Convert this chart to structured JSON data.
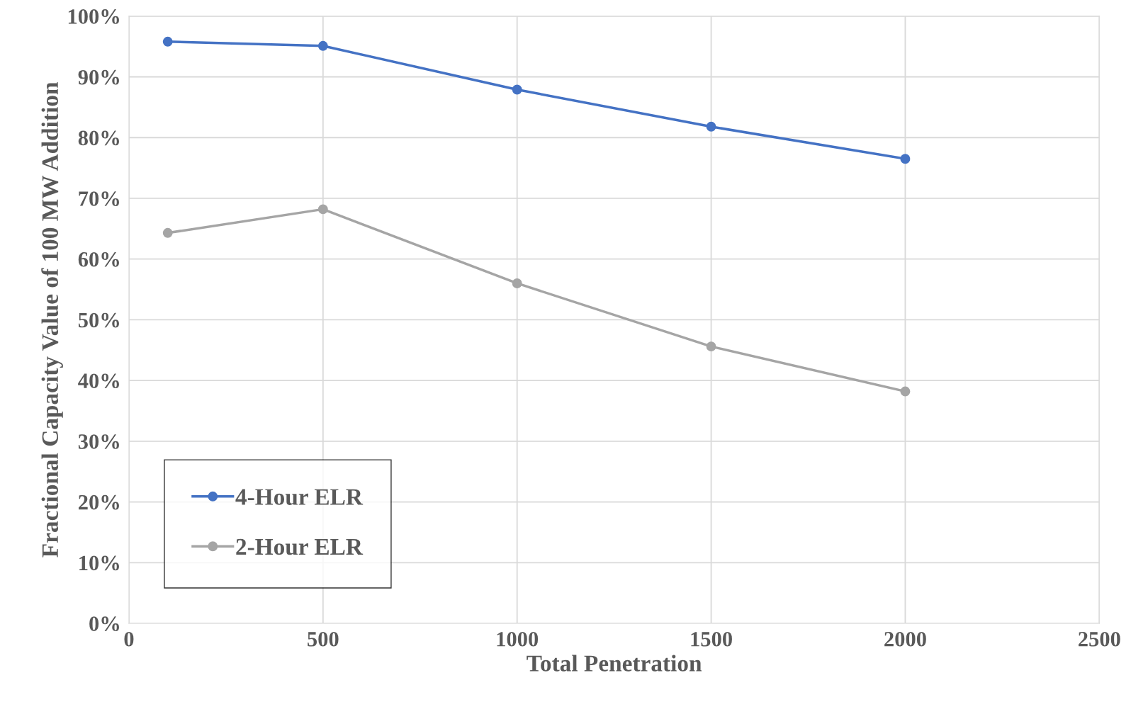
{
  "chart_data": {
    "type": "line",
    "xlabel": "Total Penetration",
    "ylabel": "Fractional Capacity Value of 100 MW Addition",
    "x": [
      100,
      500,
      1000,
      1500,
      2000
    ],
    "series": [
      {
        "name": "4-Hour ELR",
        "color": "#4472c4",
        "values": [
          95.8,
          95.1,
          87.9,
          81.8,
          76.5
        ]
      },
      {
        "name": "2-Hour ELR",
        "color": "#a5a5a5",
        "values": [
          64.3,
          68.2,
          56.0,
          45.6,
          38.2
        ]
      }
    ],
    "xlim": [
      0,
      2500
    ],
    "xticks": [
      0,
      500,
      1000,
      1500,
      2000,
      2500
    ],
    "ylim": [
      0,
      100
    ],
    "yticks": [
      {
        "value": 0,
        "label": "0%"
      },
      {
        "value": 10,
        "label": "10%"
      },
      {
        "value": 20,
        "label": "20%"
      },
      {
        "value": 30,
        "label": "30%"
      },
      {
        "value": 40,
        "label": "40%"
      },
      {
        "value": 50,
        "label": "50%"
      },
      {
        "value": 60,
        "label": "60%"
      },
      {
        "value": 70,
        "label": "70%"
      },
      {
        "value": 80,
        "label": "80%"
      },
      {
        "value": 90,
        "label": "90%"
      },
      {
        "value": 100,
        "label": "100%"
      }
    ],
    "grid": true,
    "legend": "bottom left",
    "marker": "circle",
    "line_style": "solid"
  }
}
